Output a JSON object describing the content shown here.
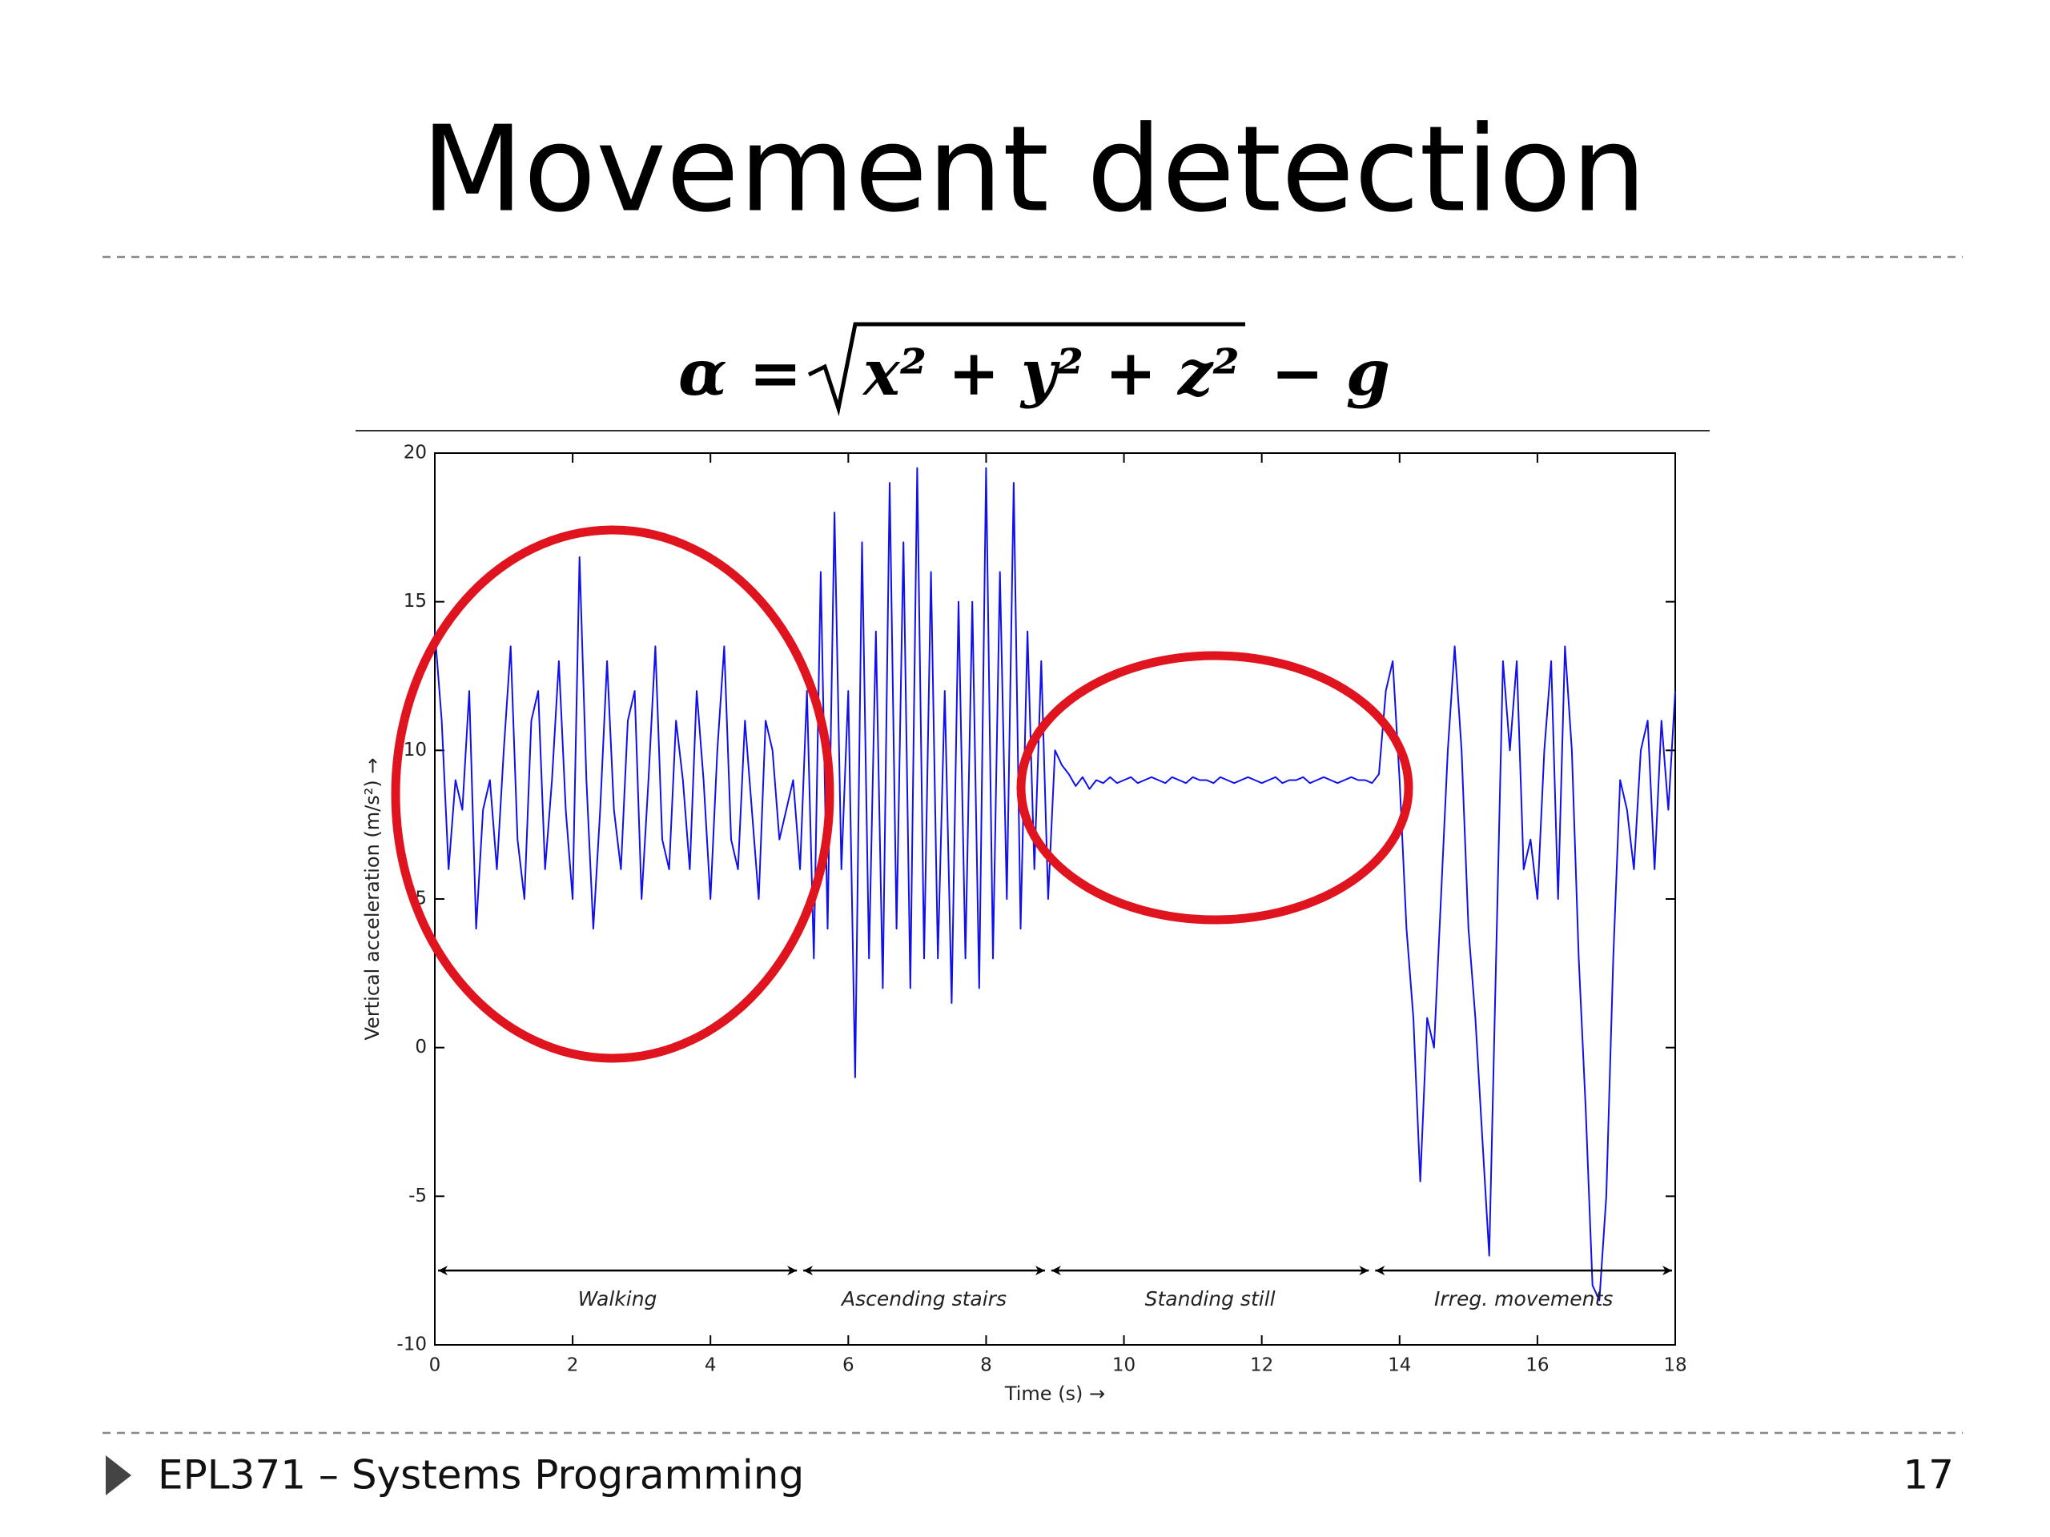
{
  "title": "Movement detection",
  "formula": {
    "lhs": "α =",
    "radicand": "x² + y² + z²",
    "rhs": "− g"
  },
  "footer": {
    "text": "EPL371 – Systems Programming",
    "page": "17"
  },
  "chart_data": {
    "type": "line",
    "xlabel": "Time (s) →",
    "ylabel": "Vertical acceleration (m/s²) →",
    "xlim": [
      0,
      18
    ],
    "xticks": [
      0,
      2,
      4,
      6,
      8,
      10,
      12,
      14,
      16,
      18
    ],
    "ylim": [
      -10,
      20
    ],
    "yticks": [
      -10,
      -5,
      0,
      5,
      10,
      15,
      20
    ],
    "grid": false,
    "x": [
      0,
      0.1,
      0.2,
      0.3,
      0.4,
      0.5,
      0.6,
      0.7,
      0.8,
      0.9,
      1,
      1.1,
      1.2,
      1.3,
      1.4,
      1.5,
      1.6,
      1.7,
      1.8,
      1.9,
      2,
      2.1,
      2.2,
      2.3,
      2.4,
      2.5,
      2.6,
      2.7,
      2.8,
      2.9,
      3,
      3.1,
      3.2,
      3.3,
      3.4,
      3.5,
      3.6,
      3.7,
      3.8,
      3.9,
      4,
      4.1,
      4.2,
      4.3,
      4.4,
      4.5,
      4.6,
      4.7,
      4.8,
      4.9,
      5,
      5.1,
      5.2,
      5.3,
      5.4,
      5.5,
      5.6,
      5.7,
      5.8,
      5.9,
      6,
      6.1,
      6.2,
      6.3,
      6.4,
      6.5,
      6.6,
      6.7,
      6.8,
      6.9,
      7,
      7.1,
      7.2,
      7.3,
      7.4,
      7.5,
      7.6,
      7.7,
      7.8,
      7.9,
      8,
      8.1,
      8.2,
      8.3,
      8.4,
      8.5,
      8.6,
      8.7,
      8.8,
      8.9,
      9,
      9.1,
      9.2,
      9.3,
      9.4,
      9.5,
      9.6,
      9.7,
      9.8,
      9.9,
      10,
      10.1,
      10.2,
      10.3,
      10.4,
      10.5,
      10.6,
      10.7,
      10.8,
      10.9,
      11,
      11.1,
      11.2,
      11.3,
      11.4,
      11.5,
      11.6,
      11.7,
      11.8,
      11.9,
      12,
      12.1,
      12.2,
      12.3,
      12.4,
      12.5,
      12.6,
      12.7,
      12.8,
      12.9,
      13,
      13.1,
      13.2,
      13.3,
      13.4,
      13.5,
      13.6,
      13.7,
      13.8,
      13.9,
      14,
      14.1,
      14.2,
      14.3,
      14.4,
      14.5,
      14.6,
      14.7,
      14.8,
      14.9,
      15,
      15.1,
      15.2,
      15.3,
      15.4,
      15.5,
      15.6,
      15.7,
      15.8,
      15.9,
      16,
      16.1,
      16.2,
      16.3,
      16.4,
      16.5,
      16.6,
      16.7,
      16.8,
      16.9,
      17,
      17.1,
      17.2,
      17.3,
      17.4,
      17.5,
      17.6,
      17.7,
      17.8,
      17.9,
      18
    ],
    "series": [
      {
        "color": "#1010ee",
        "values": [
          14,
          11,
          6,
          9,
          8,
          12,
          4,
          8,
          9,
          6,
          10,
          13.5,
          7,
          5,
          11,
          12,
          6,
          9,
          13,
          8,
          5,
          16.5,
          9,
          4,
          8,
          13,
          8,
          6,
          11,
          12,
          5,
          9,
          13.5,
          7,
          6,
          11,
          9,
          6,
          12,
          9,
          5,
          10,
          13.5,
          7,
          6,
          11,
          8,
          5,
          11,
          10,
          7,
          8,
          9,
          6,
          12,
          3,
          16,
          4,
          18,
          6,
          12,
          -1,
          17,
          3,
          14,
          2,
          19,
          4,
          17,
          2,
          19.5,
          3,
          16,
          3,
          12,
          1.5,
          15,
          3,
          15,
          2,
          19.5,
          3,
          16,
          5,
          19,
          4,
          14,
          6,
          13,
          5,
          10,
          9.5,
          9.2,
          8.8,
          9.1,
          8.7,
          9,
          8.9,
          9.1,
          8.9,
          9,
          9.1,
          8.9,
          9,
          9.1,
          9,
          8.9,
          9.1,
          9,
          8.9,
          9.1,
          9,
          9,
          8.9,
          9.1,
          9,
          8.9,
          9,
          9.1,
          9,
          8.9,
          9,
          9.1,
          8.9,
          9,
          9,
          9.1,
          8.9,
          9,
          9.1,
          9,
          8.9,
          9,
          9.1,
          9,
          9,
          8.9,
          9.2,
          12,
          13,
          9,
          4,
          1,
          -4.5,
          1,
          0,
          5,
          10,
          13.5,
          10,
          4,
          1,
          -3,
          -7,
          3,
          13,
          10,
          13,
          6,
          7,
          5,
          10,
          13,
          5,
          13.5,
          10,
          3,
          -2,
          -8,
          -8.5,
          -5,
          3,
          9,
          8,
          6,
          10,
          11,
          6,
          11,
          8,
          12
        ]
      }
    ],
    "annotations": [
      {
        "text": "Walking",
        "x": [
          0,
          5.3
        ],
        "y": -7.5
      },
      {
        "text": "Ascending stairs",
        "x": [
          5.3,
          8.9
        ],
        "y": -7.5
      },
      {
        "text": "Standing still",
        "x": [
          8.9,
          13.6
        ],
        "y": -7.5
      },
      {
        "text": "Irreg. movements",
        "x": [
          13.6,
          18
        ],
        "y": -7.5
      }
    ]
  }
}
